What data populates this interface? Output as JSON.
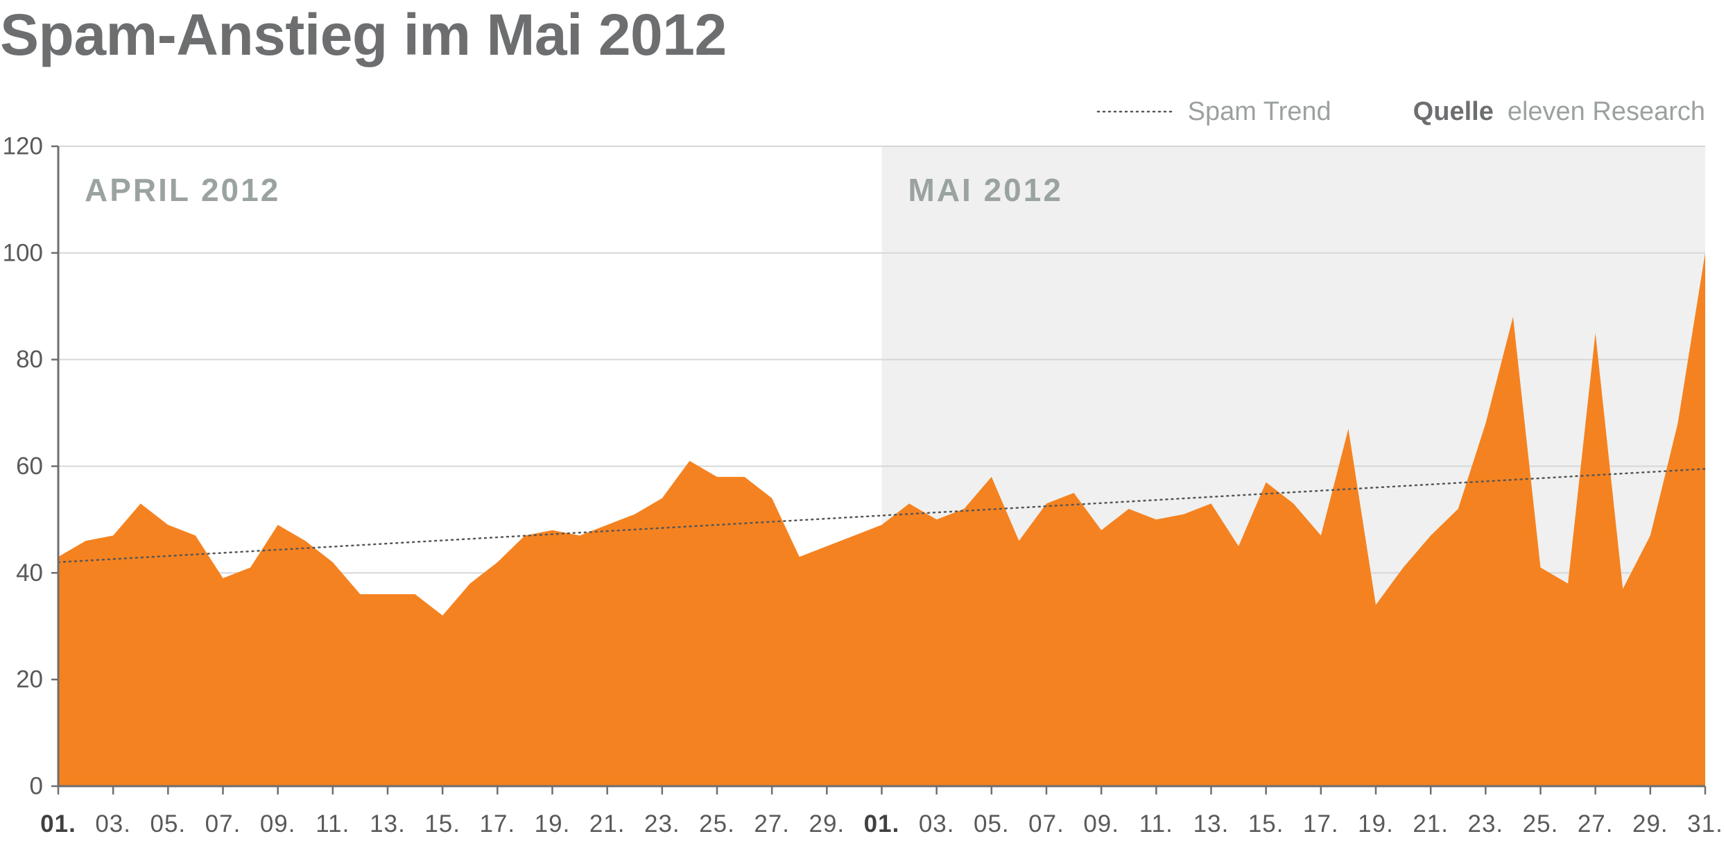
{
  "chart_data": {
    "type": "area",
    "title": "Spam-Anstieg im Mai 2012",
    "ylim": [
      0,
      120
    ],
    "yticks": [
      0,
      20,
      40,
      60,
      80,
      100,
      120
    ],
    "grid": true,
    "legend": "top-right",
    "months": [
      {
        "label": "APRIL 2012",
        "shaded": false,
        "tick_labels": [
          "01.",
          "03.",
          "05.",
          "07.",
          "09.",
          "11.",
          "13.",
          "15.",
          "17.",
          "19.",
          "21.",
          "23.",
          "25.",
          "27.",
          "29."
        ],
        "values": [
          43,
          46,
          47,
          53,
          49,
          47,
          39,
          41,
          49,
          46,
          42,
          36,
          36,
          36,
          32,
          38,
          42,
          47,
          48,
          47,
          49,
          51,
          54,
          61,
          58,
          58,
          54,
          43,
          45,
          47
        ]
      },
      {
        "label": "MAI 2012",
        "shaded": true,
        "tick_labels": [
          "01.",
          "03.",
          "05.",
          "07.",
          "09.",
          "11.",
          "13.",
          "15.",
          "17.",
          "19.",
          "21.",
          "23.",
          "25.",
          "27.",
          "29.",
          "31."
        ],
        "values": [
          49,
          53,
          50,
          52,
          58,
          46,
          53,
          55,
          48,
          52,
          50,
          51,
          53,
          45,
          57,
          53,
          47,
          67,
          34,
          41,
          47,
          52,
          68,
          88,
          41,
          38,
          85,
          37,
          47,
          68,
          100
        ]
      }
    ],
    "trend": {
      "name": "Spam Trend",
      "start": 42,
      "end": 59.5
    }
  },
  "source": {
    "label": "Quelle",
    "text": "eleven Research"
  },
  "colors": {
    "area": "#f58220",
    "shade": "#eff0ef",
    "grid": "#d6d7d7",
    "axis": "#6d6e70",
    "trend": "#555658",
    "text": "#58595b",
    "month_label": "#9aa39f"
  }
}
